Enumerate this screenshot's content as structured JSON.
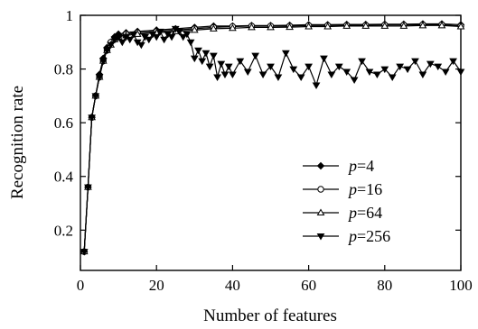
{
  "chart_data": {
    "type": "line",
    "title": "",
    "xlabel": "Number of features",
    "ylabel": "Recognition rate",
    "xlim": [
      0,
      100
    ],
    "ylim": [
      0.05,
      1.0
    ],
    "x_ticks": [
      0,
      20,
      40,
      60,
      80,
      100
    ],
    "x_tick_labels": [
      "0",
      "20",
      "40",
      "60",
      "80",
      "100"
    ],
    "y_ticks": [
      0.2,
      0.4,
      0.6,
      0.8,
      1.0
    ],
    "y_tick_labels": [
      "0.2",
      "0.4",
      "0.6",
      "0.8",
      "1"
    ],
    "grid": false,
    "legend_position": "right-middle",
    "series": [
      {
        "name": "p=4",
        "label_prefix": "p",
        "label_suffix": "=4",
        "marker": "filled-diamond",
        "x": [
          1,
          2,
          3,
          4,
          5,
          6,
          7,
          8,
          9,
          10,
          12,
          15,
          20,
          25,
          30,
          35,
          40,
          45,
          50,
          55,
          60,
          65,
          70,
          75,
          80,
          85,
          90,
          95,
          100
        ],
        "y": [
          0.12,
          0.36,
          0.62,
          0.7,
          0.78,
          0.84,
          0.88,
          0.9,
          0.92,
          0.93,
          0.935,
          0.94,
          0.945,
          0.95,
          0.955,
          0.96,
          0.96,
          0.962,
          0.962,
          0.963,
          0.965,
          0.965,
          0.966,
          0.966,
          0.967,
          0.967,
          0.968,
          0.968,
          0.965
        ]
      },
      {
        "name": "p=16",
        "label_prefix": "p",
        "label_suffix": "=16",
        "marker": "open-circle",
        "x": [
          1,
          2,
          3,
          4,
          5,
          6,
          7,
          8,
          9,
          10,
          12,
          15,
          20,
          25,
          30,
          35,
          40,
          45,
          50,
          55,
          60,
          65,
          70,
          75,
          80,
          85,
          90,
          95,
          100
        ],
        "y": [
          0.12,
          0.36,
          0.62,
          0.7,
          0.77,
          0.83,
          0.87,
          0.9,
          0.91,
          0.92,
          0.93,
          0.935,
          0.94,
          0.945,
          0.95,
          0.955,
          0.958,
          0.96,
          0.96,
          0.96,
          0.962,
          0.962,
          0.963,
          0.963,
          0.964,
          0.964,
          0.965,
          0.965,
          0.96
        ]
      },
      {
        "name": "p=64",
        "label_prefix": "p",
        "label_suffix": "=64",
        "marker": "open-triangle",
        "x": [
          1,
          2,
          3,
          4,
          5,
          6,
          7,
          8,
          9,
          10,
          12,
          15,
          20,
          25,
          30,
          35,
          40,
          45,
          50,
          55,
          60,
          65,
          70,
          75,
          80,
          85,
          90,
          95,
          100
        ],
        "y": [
          0.12,
          0.36,
          0.62,
          0.7,
          0.77,
          0.83,
          0.87,
          0.89,
          0.91,
          0.92,
          0.925,
          0.93,
          0.935,
          0.94,
          0.945,
          0.95,
          0.952,
          0.955,
          0.955,
          0.956,
          0.958,
          0.958,
          0.96,
          0.96,
          0.96,
          0.96,
          0.962,
          0.962,
          0.958
        ]
      },
      {
        "name": "p=256",
        "label_prefix": "p",
        "label_suffix": "=256",
        "marker": "filled-down-triangle",
        "x": [
          1,
          2,
          3,
          4,
          5,
          6,
          7,
          8,
          9,
          10,
          11,
          12,
          13,
          14,
          15,
          16,
          17,
          18,
          19,
          20,
          21,
          22,
          23,
          24,
          25,
          26,
          27,
          28,
          29,
          30,
          31,
          32,
          33,
          34,
          35,
          36,
          37,
          38,
          39,
          40,
          42,
          44,
          46,
          48,
          50,
          52,
          54,
          56,
          58,
          60,
          62,
          64,
          66,
          68,
          70,
          72,
          74,
          76,
          78,
          80,
          82,
          84,
          86,
          88,
          90,
          92,
          94,
          96,
          98,
          100
        ],
        "y": [
          0.12,
          0.36,
          0.62,
          0.7,
          0.77,
          0.83,
          0.87,
          0.89,
          0.91,
          0.92,
          0.9,
          0.92,
          0.91,
          0.93,
          0.9,
          0.89,
          0.92,
          0.91,
          0.93,
          0.92,
          0.94,
          0.91,
          0.93,
          0.92,
          0.95,
          0.94,
          0.92,
          0.93,
          0.9,
          0.84,
          0.87,
          0.83,
          0.86,
          0.81,
          0.85,
          0.77,
          0.82,
          0.78,
          0.81,
          0.78,
          0.83,
          0.79,
          0.85,
          0.78,
          0.81,
          0.77,
          0.86,
          0.8,
          0.77,
          0.81,
          0.74,
          0.84,
          0.78,
          0.81,
          0.79,
          0.76,
          0.83,
          0.79,
          0.78,
          0.8,
          0.77,
          0.81,
          0.8,
          0.83,
          0.78,
          0.82,
          0.81,
          0.79,
          0.83,
          0.79
        ]
      }
    ]
  }
}
